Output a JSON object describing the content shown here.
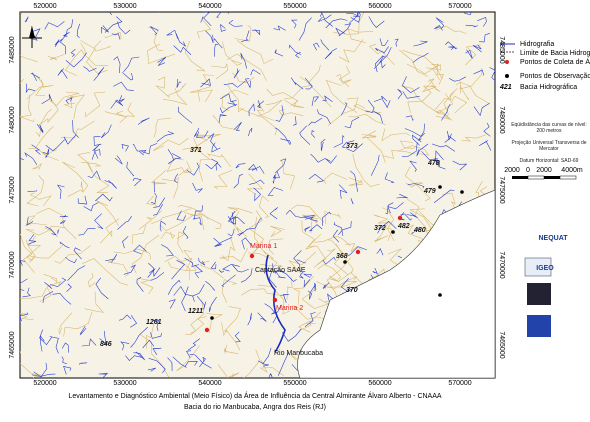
{
  "map": {
    "coords_top": [
      "520000",
      "530000",
      "540000",
      "550000",
      "560000",
      "570000"
    ],
    "coords_left": [
      "7485000",
      "7480000",
      "7475000",
      "7470000",
      "7465000"
    ],
    "basins": [
      "371",
      "373",
      "478",
      "479",
      "372",
      "482",
      "480",
      "368",
      "370",
      "1211",
      "1261",
      "846"
    ],
    "places": [
      "Marina 1",
      "Captação SAAE",
      "Marina 2",
      "Rio Manbucaba"
    ]
  },
  "legend": {
    "items": [
      "Hidrografia",
      "Limite de Bacia Hidrográfica",
      "Pontos de Coleta de Água",
      "Pontos de Observação"
    ],
    "basin_code": "421",
    "basin_label": "Bacia Hidrográfica",
    "notes": [
      "Eqüidistância das curvas de nível: 200 metros",
      "Projeção Universal Transversa de Mercator",
      "Datum Horizontal: SAD-69"
    ],
    "scale": [
      "2000",
      "0",
      "2000",
      "4000m"
    ],
    "logos": [
      "NEQUAT",
      "IGEO"
    ]
  },
  "caption": {
    "title": "Levantamento e Diagnóstico Ambiental (Meio Físico) da Área de Influência da Central Almirante Álvaro Alberto - CNAAA",
    "subtitle": "Bacia do rio Manbucaba, Angra dos Reis (RJ)"
  }
}
